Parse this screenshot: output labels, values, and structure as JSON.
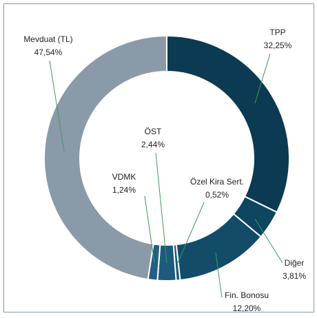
{
  "chart_data": {
    "type": "donut",
    "categories": [
      "TPP",
      "Diğer",
      "Fin. Bonosu",
      "Özel Kira Sert.",
      "ÖST",
      "VDMK",
      "Mevduat (TL)"
    ],
    "values": [
      32.25,
      3.81,
      12.2,
      0.52,
      2.44,
      1.24,
      47.54
    ],
    "value_labels": [
      "32,25%",
      "3,81%",
      "12,20%",
      "0,52%",
      "2,44%",
      "1,24%",
      "47,54%"
    ],
    "colors": [
      "#0b3a52",
      "#0e4560",
      "#124c69",
      "#1a5a78",
      "#1c5b7c",
      "#245f82",
      "#8a9aa8"
    ]
  }
}
